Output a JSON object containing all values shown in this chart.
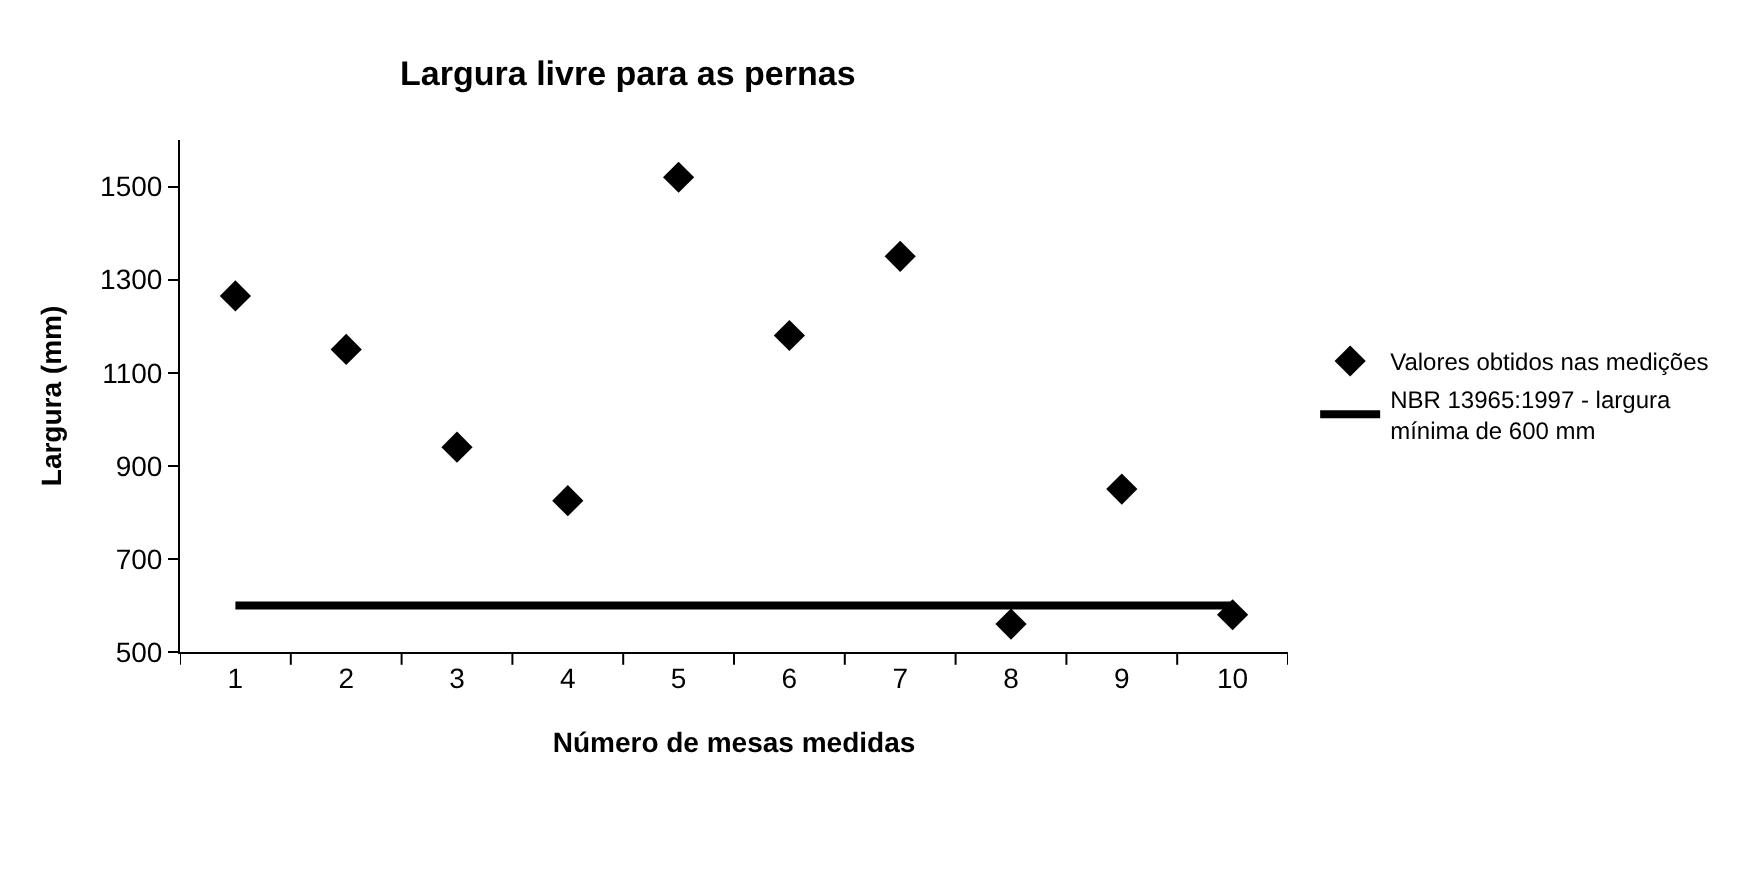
{
  "chart_data": {
    "type": "scatter",
    "title": "Largura livre para as pernas",
    "xlabel": "Número de mesas medidas",
    "ylabel": "Largura (mm)",
    "categories": [
      "1",
      "2",
      "3",
      "4",
      "5",
      "6",
      "7",
      "8",
      "9",
      "10"
    ],
    "series": [
      {
        "name": "Valores obtidos nas medições",
        "marker": "diamond",
        "color": "#000000",
        "values": [
          1265,
          1150,
          940,
          825,
          1520,
          1180,
          1350,
          560,
          850,
          580
        ]
      },
      {
        "name": "NBR 13965:1997 - largura mínima de 600 mm",
        "type": "line",
        "marker": "none",
        "line_style": "solid",
        "color": "#000000",
        "values": [
          600,
          600,
          600,
          600,
          600,
          600,
          600,
          600,
          600,
          600
        ]
      }
    ],
    "ylim": [
      500,
      1600
    ],
    "yticks": [
      500,
      700,
      900,
      1100,
      1300,
      1500
    ],
    "legend": "right"
  }
}
